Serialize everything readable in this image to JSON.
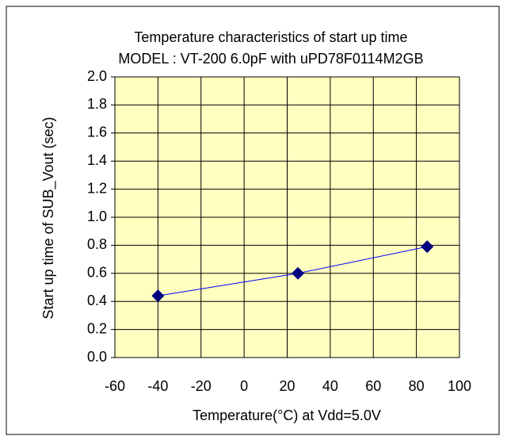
{
  "chart_data": {
    "type": "line",
    "title": "Temperature characteristics of  start up time",
    "subtitle": "MODEL : VT-200 6.0pF with uPD78F0114M2GB",
    "x_label": "Temperature(°C)  at  Vdd=5.0V",
    "y_label": "Start up time of  SUB_Vout (sec)",
    "x": [
      -40,
      25,
      85
    ],
    "series": [
      {
        "name": "start up time",
        "color": "#0000ff",
        "marker_color": "#000080",
        "values": [
          0.44,
          0.6,
          0.79
        ]
      }
    ],
    "xlim": [
      -60,
      100
    ],
    "xticks": [
      -60,
      -40,
      -20,
      0,
      20,
      40,
      60,
      80,
      100
    ],
    "ylim": [
      0,
      2
    ],
    "yticks": [
      {
        "value": 0,
        "label": "0.0"
      },
      0.2,
      0.4,
      0.6,
      0.8,
      {
        "value": 1,
        "label": "1.0"
      },
      1.2,
      1.4,
      1.6,
      1.8,
      {
        "value": 2,
        "label": "2.0"
      }
    ],
    "grid": true,
    "background": "#ffffc0"
  }
}
